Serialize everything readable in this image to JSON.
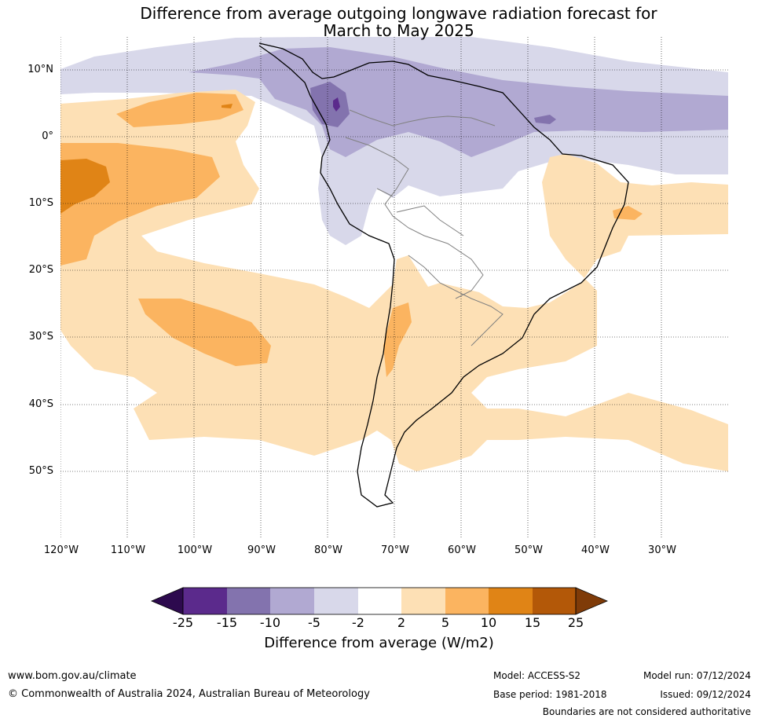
{
  "title": {
    "line1": "Difference from average outgoing longwave radiation forecast for",
    "line2": "March to May 2025"
  },
  "map": {
    "lat_labels": [
      "10°N",
      "0°",
      "10°S",
      "20°S",
      "30°S",
      "40°S",
      "50°S"
    ],
    "lon_labels": [
      "120°W",
      "110°W",
      "100°W",
      "90°W",
      "80°W",
      "70°W",
      "60°W",
      "50°W",
      "40°W",
      "30°W"
    ]
  },
  "colorbar": {
    "title": "Difference from average (W/m2)",
    "ticks": [
      "-25",
      "-15",
      "-10",
      "-5",
      "-2",
      "2",
      "5",
      "10",
      "15",
      "25"
    ],
    "colors": [
      "#2d0a4e",
      "#5b2a8c",
      "#8373ae",
      "#b1a9d2",
      "#d8d8ea",
      "#ffffff",
      "#fde0b5",
      "#fbb460",
      "#e08416",
      "#b35808",
      "#7f3b08"
    ]
  },
  "footer": {
    "url": "www.bom.gov.au/climate",
    "copyright": "© Commonwealth of Australia 2024, Australian Bureau of Meteorology",
    "model": "Model: ACCESS-S2",
    "base_period": "Base period: 1981-2018",
    "model_run": "Model run: 07/12/2024",
    "issued": "Issued: 09/12/2024",
    "disclaimer": "Boundaries are not considered authoritative"
  }
}
